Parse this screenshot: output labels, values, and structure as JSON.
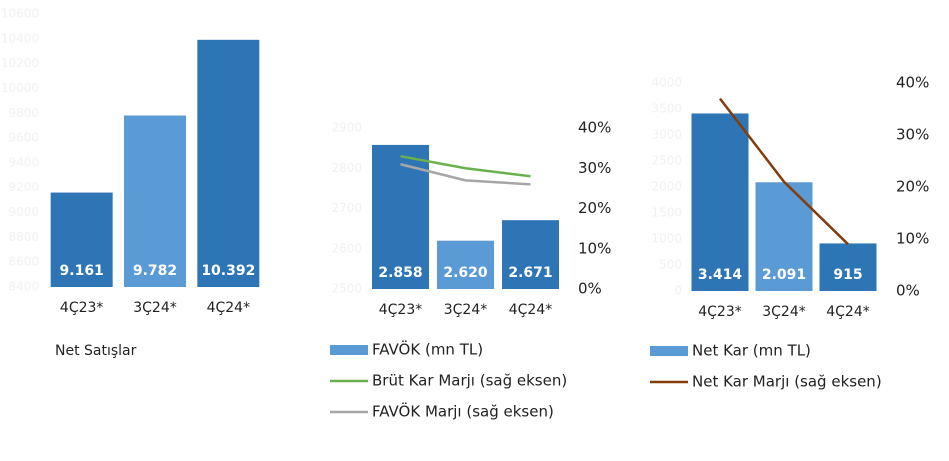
{
  "chart_data": [
    {
      "type": "bar",
      "title": "Net Satışlar",
      "categories": [
        "4Ç23*",
        "3Ç24*",
        "4Ç24*"
      ],
      "values": [
        9161,
        9782,
        10392
      ],
      "value_labels": [
        "9.161",
        "9.782",
        "10.392"
      ],
      "colors": [
        "#2e75b6",
        "#5b9bd5",
        "#2e75b6"
      ],
      "ylim": [
        8400,
        10600
      ],
      "yticks": [
        8400,
        8600,
        8800,
        9000,
        9200,
        9400,
        9600,
        9800,
        10000,
        10200,
        10400,
        10600
      ]
    },
    {
      "type": "bar",
      "categories": [
        "4Ç23*",
        "3Ç24*",
        "4Ç24*"
      ],
      "series": [
        {
          "name": "FAVÖK (mn TL)",
          "type": "bar",
          "color": "#5b9bd5",
          "colors": [
            "#2e75b6",
            "#5b9bd5",
            "#2e75b6"
          ],
          "values": [
            2858,
            2620,
            2671
          ],
          "value_labels": [
            "2.858",
            "2.620",
            "2.671"
          ]
        },
        {
          "name": "Brüt Kar Marjı (sağ eksen)",
          "type": "line",
          "color": "#6ab04c",
          "axis": "y2",
          "values": [
            33,
            30,
            28
          ]
        },
        {
          "name": "FAVÖK Marjı (sağ eksen)",
          "type": "line",
          "color": "#a6a6a6",
          "axis": "y2",
          "values": [
            31,
            27,
            26
          ]
        }
      ],
      "ylim": [
        2500,
        2900
      ],
      "yticks": [
        2500,
        2600,
        2700,
        2800,
        2900
      ],
      "y2lim": [
        0,
        40
      ],
      "y2ticks": [
        {
          "value": 0,
          "label": "0%"
        },
        {
          "value": 10,
          "label": "10%"
        },
        {
          "value": 20,
          "label": "20%"
        },
        {
          "value": 30,
          "label": "30%"
        },
        {
          "value": 40,
          "label": "40%"
        }
      ]
    },
    {
      "type": "bar",
      "categories": [
        "4Ç23*",
        "3Ç24*",
        "4Ç24*"
      ],
      "series": [
        {
          "name": "Net Kar (mn TL)",
          "type": "bar",
          "color": "#5b9bd5",
          "colors": [
            "#2e75b6",
            "#5b9bd5",
            "#2e75b6"
          ],
          "values": [
            3414,
            2091,
            915
          ],
          "value_labels": [
            "3.414",
            "2.091",
            "915"
          ]
        },
        {
          "name": "Net Kar Marjı (sağ eksen)",
          "type": "line",
          "color": "#843c0c",
          "axis": "y2",
          "values": [
            37,
            21,
            9
          ]
        }
      ],
      "ylim": [
        0,
        4000
      ],
      "yticks": [
        0,
        500,
        1000,
        1500,
        2000,
        2500,
        3000,
        3500,
        4000
      ],
      "y2lim": [
        0,
        40
      ],
      "y2ticks": [
        {
          "value": 0,
          "label": "0%"
        },
        {
          "value": 10,
          "label": "10%"
        },
        {
          "value": 20,
          "label": "20%"
        },
        {
          "value": 30,
          "label": "30%"
        },
        {
          "value": 40,
          "label": "40%"
        }
      ]
    }
  ]
}
